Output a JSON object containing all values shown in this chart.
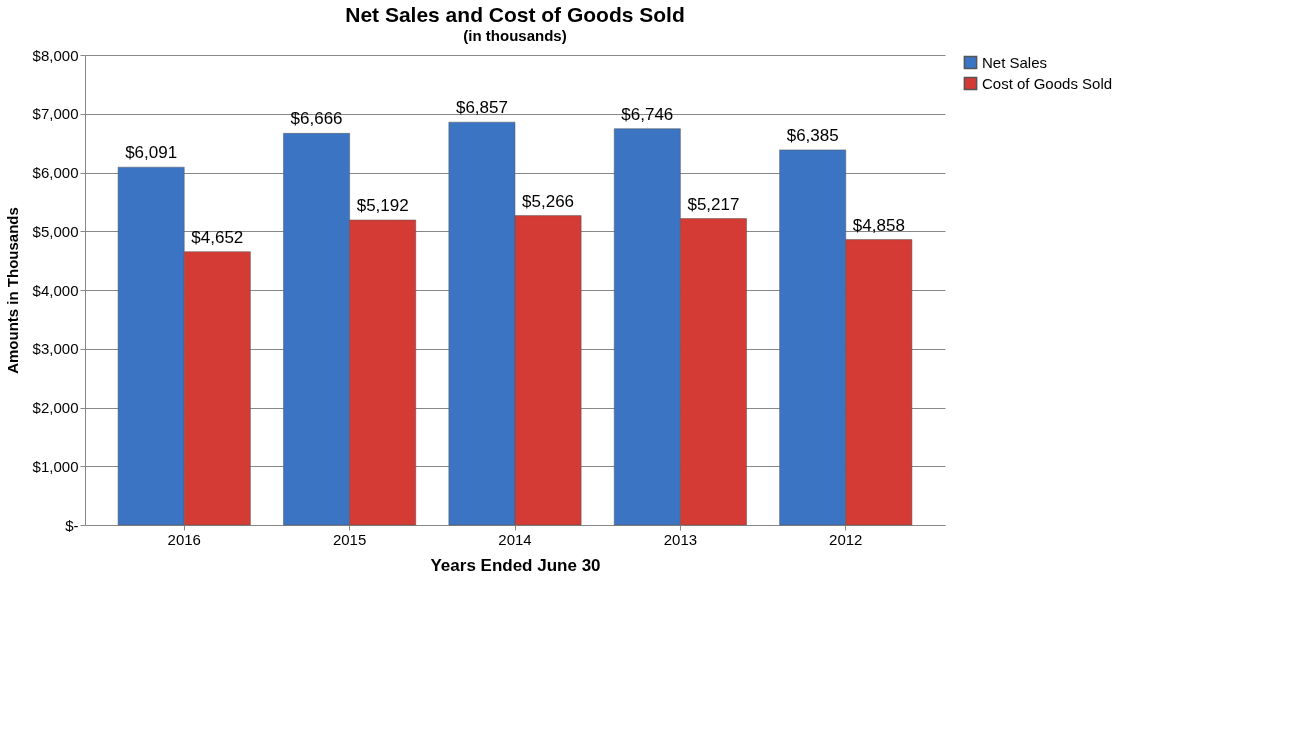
{
  "chart_data": {
    "type": "bar",
    "title": "Net Sales and Cost of Goods Sold",
    "subtitle": "(in thousands)",
    "xlabel": "Years Ended June 30",
    "ylabel": "Amounts in Thousands",
    "categories": [
      "2016",
      "2015",
      "2014",
      "2013",
      "2012"
    ],
    "series": [
      {
        "name": "Net Sales",
        "color": "#3b74c2",
        "values": [
          6091,
          6666,
          6857,
          6746,
          6385
        ],
        "value_labels": [
          "$6,091",
          "$6,666",
          "$6,857",
          "$6,746",
          "$6,385"
        ]
      },
      {
        "name": "Cost of Goods Sold",
        "color": "#d43b35",
        "values": [
          4652,
          5192,
          5266,
          5217,
          4858
        ],
        "value_labels": [
          "$4,652",
          "$5,192",
          "$5,266",
          "$5,217",
          "$4,858"
        ]
      }
    ],
    "ylim": [
      0,
      8000
    ],
    "yticks": [
      {
        "value": 0,
        "label": "$-"
      },
      {
        "value": 1000,
        "label": "$1,000"
      },
      {
        "value": 2000,
        "label": "$2,000"
      },
      {
        "value": 3000,
        "label": "$3,000"
      },
      {
        "value": 4000,
        "label": "$4,000"
      },
      {
        "value": 5000,
        "label": "$5,000"
      },
      {
        "value": 6000,
        "label": "$6,000"
      },
      {
        "value": 7000,
        "label": "$7,000"
      },
      {
        "value": 8000,
        "label": "$8,000"
      }
    ],
    "grid": "y",
    "legend": "right"
  }
}
